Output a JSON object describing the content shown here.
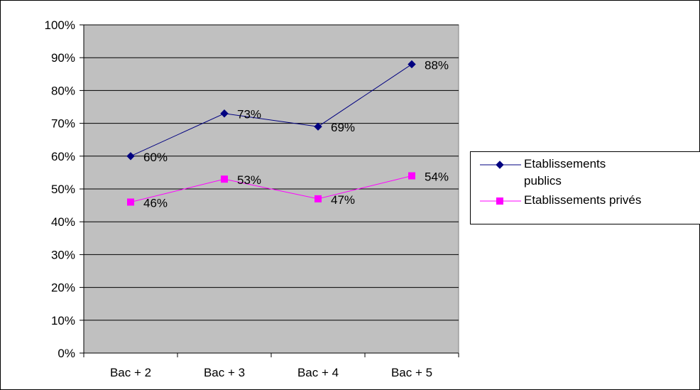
{
  "chart_data": {
    "type": "line",
    "categories": [
      "Bac + 2",
      "Bac + 3",
      "Bac + 4",
      "Bac + 5"
    ],
    "series": [
      {
        "name_lines": [
          "Etablissements",
          "publics"
        ],
        "name": "Etablissements publics",
        "values": [
          60,
          73,
          69,
          88
        ],
        "labels": [
          "60%",
          "73%",
          "69%",
          "88%"
        ],
        "color": "#000080",
        "marker": "diamond"
      },
      {
        "name_lines": [
          "Etablissements privés"
        ],
        "name": "Etablissements privés",
        "values": [
          46,
          53,
          47,
          54
        ],
        "labels": [
          "46%",
          "53%",
          "47%",
          "54%"
        ],
        "color": "#ff00ff",
        "marker": "square"
      }
    ],
    "y_ticks": [
      "0%",
      "10%",
      "20%",
      "30%",
      "40%",
      "50%",
      "60%",
      "70%",
      "80%",
      "90%",
      "100%"
    ],
    "ylim": [
      0,
      100
    ],
    "grid": true,
    "plot_background": "#c0c0c0",
    "legend_position": "right",
    "title": "",
    "xlabel": "",
    "ylabel": ""
  }
}
